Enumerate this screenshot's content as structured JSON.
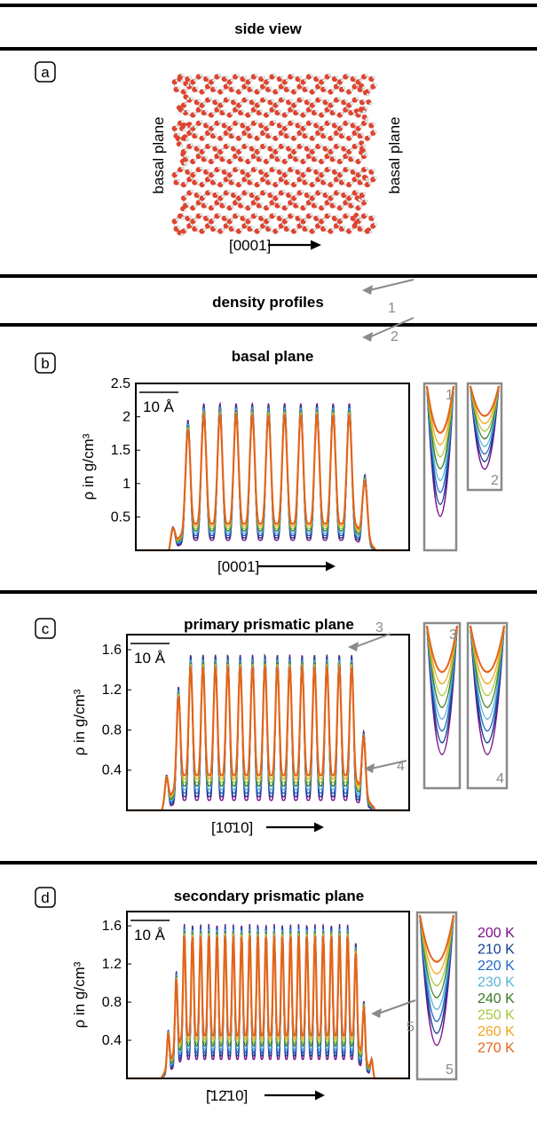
{
  "colors": {
    "rule": "#000000",
    "annotation": "#8a8a8a",
    "oxygen": "#e0432e",
    "hydrogen": "#f2f2f2",
    "temperature_palette": [
      "#7b0f8a",
      "#12408d",
      "#2268c7",
      "#5ab4d8",
      "#3a7a26",
      "#a7c83c",
      "#f4a51f",
      "#e2651a"
    ]
  },
  "section_side": {
    "title": "side view"
  },
  "panel_a": {
    "badge": "a",
    "left_label": "basal plane",
    "right_label": "basal plane",
    "axis_label": "[0001]",
    "icon": "arrow-right-icon"
  },
  "section_density": {
    "title": "density profiles"
  },
  "chart_data": [
    {
      "type": "line",
      "panel": "b",
      "title": "basal plane",
      "ylabel": "ρ in g/cm³",
      "xlabel": "[0001]",
      "yticks": [
        "2.5",
        "2",
        "1.5",
        "1",
        "0.5"
      ],
      "ylim": [
        0,
        2.5
      ],
      "scale_bar": "10 Å",
      "n_peaks": 12,
      "peak_max": 2.2,
      "trough_min": 0.15,
      "annotations": [
        "1",
        "2"
      ],
      "zoom_labels": [
        "1",
        "2"
      ],
      "series": [
        {
          "name": "200 K",
          "color": "#7b0f8a"
        },
        {
          "name": "210 K",
          "color": "#12408d"
        },
        {
          "name": "220 K",
          "color": "#2268c7"
        },
        {
          "name": "230 K",
          "color": "#5ab4d8"
        },
        {
          "name": "240 K",
          "color": "#3a7a26"
        },
        {
          "name": "250 K",
          "color": "#a7c83c"
        },
        {
          "name": "260 K",
          "color": "#f4a51f"
        },
        {
          "name": "270 K",
          "color": "#e2651a"
        }
      ],
      "grid": false
    },
    {
      "type": "line",
      "panel": "c",
      "title": "primary prismatic plane",
      "ylabel": "ρ in g/cm³",
      "xlabel": "[10̄10]",
      "yticks": [
        "1.6",
        "1.2",
        "0.8",
        "0.4"
      ],
      "ylim": [
        0,
        1.75
      ],
      "scale_bar": "10 Å",
      "n_peaks": 16,
      "peak_max": 1.55,
      "trough_min": 0.1,
      "annotations": [
        "3",
        "4"
      ],
      "zoom_labels": [
        "3",
        "4"
      ],
      "series": [
        {
          "name": "200 K",
          "color": "#7b0f8a"
        },
        {
          "name": "210 K",
          "color": "#12408d"
        },
        {
          "name": "220 K",
          "color": "#2268c7"
        },
        {
          "name": "230 K",
          "color": "#5ab4d8"
        },
        {
          "name": "240 K",
          "color": "#3a7a26"
        },
        {
          "name": "250 K",
          "color": "#a7c83c"
        },
        {
          "name": "260 K",
          "color": "#f4a51f"
        },
        {
          "name": "270 K",
          "color": "#e2651a"
        }
      ],
      "grid": false
    },
    {
      "type": "line",
      "panel": "d",
      "title": "secondary prismatic plane",
      "ylabel": "ρ in g/cm³",
      "xlabel": "[̄12̄10]",
      "yticks": [
        "1.6",
        "1.2",
        "0.8",
        "0.4"
      ],
      "ylim": [
        0,
        1.75
      ],
      "scale_bar": "10 Å",
      "n_peaks": 24,
      "peak_max": 1.62,
      "trough_min": 0.2,
      "annotations": [
        "5"
      ],
      "zoom_labels": [
        "5"
      ],
      "series": [
        {
          "name": "200 K",
          "color": "#7b0f8a"
        },
        {
          "name": "210 K",
          "color": "#12408d"
        },
        {
          "name": "220 K",
          "color": "#2268c7"
        },
        {
          "name": "230 K",
          "color": "#5ab4d8"
        },
        {
          "name": "240 K",
          "color": "#3a7a26"
        },
        {
          "name": "250 K",
          "color": "#a7c83c"
        },
        {
          "name": "260 K",
          "color": "#f4a51f"
        },
        {
          "name": "270 K",
          "color": "#e2651a"
        }
      ],
      "legend": "right",
      "grid": false
    }
  ],
  "panels": {
    "b": {
      "badge": "b"
    },
    "c": {
      "badge": "c"
    },
    "d": {
      "badge": "d"
    }
  },
  "legend": {
    "items": [
      "200 K",
      "210 K",
      "220 K",
      "230 K",
      "240 K",
      "250 K",
      "260 K",
      "270 K"
    ]
  }
}
